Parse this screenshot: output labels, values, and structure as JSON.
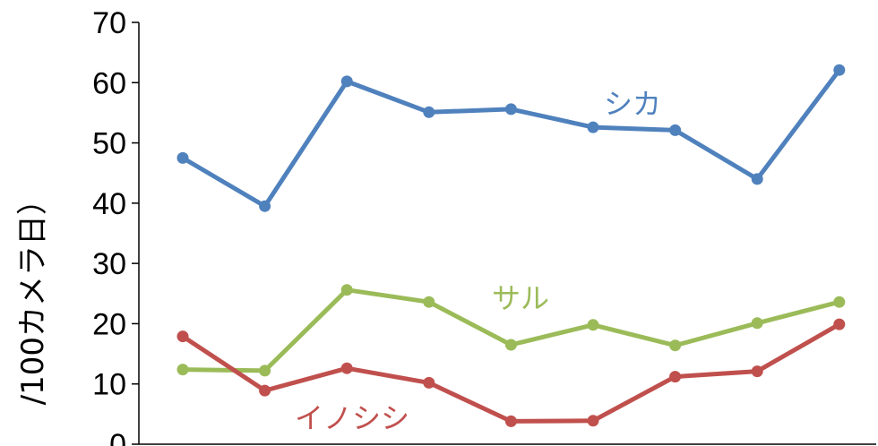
{
  "chart_data": {
    "type": "line",
    "title": "",
    "xlabel": "",
    "ylabel": "/100カメラ日）",
    "ylim": [
      0,
      70
    ],
    "yticks": [
      0,
      10,
      20,
      30,
      40,
      50,
      60,
      70
    ],
    "grid": false,
    "legend": "inline labels",
    "x": [
      1,
      2,
      3,
      4,
      5,
      6,
      7,
      8,
      9
    ],
    "series": [
      {
        "name": "シカ",
        "color": "#4F81BD",
        "values": [
          47.5,
          39.5,
          60.2,
          55.1,
          55.6,
          52.6,
          52.1,
          44.0,
          62.1
        ]
      },
      {
        "name": "サル",
        "color": "#9BBB59",
        "values": [
          12.4,
          12.2,
          25.6,
          23.6,
          16.5,
          19.8,
          16.4,
          20.1,
          23.6
        ]
      },
      {
        "name": "イノシシ",
        "color": "#C0504D",
        "values": [
          17.9,
          8.9,
          12.6,
          10.2,
          3.8,
          3.9,
          11.2,
          12.1,
          19.9
        ]
      }
    ]
  }
}
